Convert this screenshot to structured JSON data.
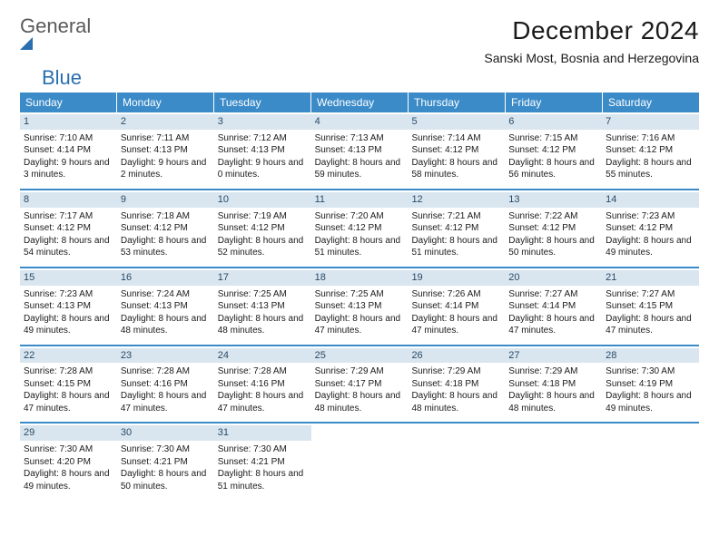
{
  "logo": {
    "general": "General",
    "blue": "Blue"
  },
  "title": "December 2024",
  "location": "Sanski Most, Bosnia and Herzegovina",
  "colors": {
    "header_bg": "#3b8bc8",
    "header_text": "#ffffff",
    "daynum_bg": "#d9e6f0",
    "daynum_text": "#2a4a66",
    "row_divider": "#3b8bc8",
    "logo_general": "#5a5a5a",
    "logo_blue": "#2a6fb0",
    "page_bg": "#ffffff",
    "body_text": "#1a1a1a"
  },
  "weekdays": [
    "Sunday",
    "Monday",
    "Tuesday",
    "Wednesday",
    "Thursday",
    "Friday",
    "Saturday"
  ],
  "weeks": [
    [
      {
        "n": "1",
        "sr": "Sunrise: 7:10 AM",
        "ss": "Sunset: 4:14 PM",
        "dl": "Daylight: 9 hours and 3 minutes."
      },
      {
        "n": "2",
        "sr": "Sunrise: 7:11 AM",
        "ss": "Sunset: 4:13 PM",
        "dl": "Daylight: 9 hours and 2 minutes."
      },
      {
        "n": "3",
        "sr": "Sunrise: 7:12 AM",
        "ss": "Sunset: 4:13 PM",
        "dl": "Daylight: 9 hours and 0 minutes."
      },
      {
        "n": "4",
        "sr": "Sunrise: 7:13 AM",
        "ss": "Sunset: 4:13 PM",
        "dl": "Daylight: 8 hours and 59 minutes."
      },
      {
        "n": "5",
        "sr": "Sunrise: 7:14 AM",
        "ss": "Sunset: 4:12 PM",
        "dl": "Daylight: 8 hours and 58 minutes."
      },
      {
        "n": "6",
        "sr": "Sunrise: 7:15 AM",
        "ss": "Sunset: 4:12 PM",
        "dl": "Daylight: 8 hours and 56 minutes."
      },
      {
        "n": "7",
        "sr": "Sunrise: 7:16 AM",
        "ss": "Sunset: 4:12 PM",
        "dl": "Daylight: 8 hours and 55 minutes."
      }
    ],
    [
      {
        "n": "8",
        "sr": "Sunrise: 7:17 AM",
        "ss": "Sunset: 4:12 PM",
        "dl": "Daylight: 8 hours and 54 minutes."
      },
      {
        "n": "9",
        "sr": "Sunrise: 7:18 AM",
        "ss": "Sunset: 4:12 PM",
        "dl": "Daylight: 8 hours and 53 minutes."
      },
      {
        "n": "10",
        "sr": "Sunrise: 7:19 AM",
        "ss": "Sunset: 4:12 PM",
        "dl": "Daylight: 8 hours and 52 minutes."
      },
      {
        "n": "11",
        "sr": "Sunrise: 7:20 AM",
        "ss": "Sunset: 4:12 PM",
        "dl": "Daylight: 8 hours and 51 minutes."
      },
      {
        "n": "12",
        "sr": "Sunrise: 7:21 AM",
        "ss": "Sunset: 4:12 PM",
        "dl": "Daylight: 8 hours and 51 minutes."
      },
      {
        "n": "13",
        "sr": "Sunrise: 7:22 AM",
        "ss": "Sunset: 4:12 PM",
        "dl": "Daylight: 8 hours and 50 minutes."
      },
      {
        "n": "14",
        "sr": "Sunrise: 7:23 AM",
        "ss": "Sunset: 4:12 PM",
        "dl": "Daylight: 8 hours and 49 minutes."
      }
    ],
    [
      {
        "n": "15",
        "sr": "Sunrise: 7:23 AM",
        "ss": "Sunset: 4:13 PM",
        "dl": "Daylight: 8 hours and 49 minutes."
      },
      {
        "n": "16",
        "sr": "Sunrise: 7:24 AM",
        "ss": "Sunset: 4:13 PM",
        "dl": "Daylight: 8 hours and 48 minutes."
      },
      {
        "n": "17",
        "sr": "Sunrise: 7:25 AM",
        "ss": "Sunset: 4:13 PM",
        "dl": "Daylight: 8 hours and 48 minutes."
      },
      {
        "n": "18",
        "sr": "Sunrise: 7:25 AM",
        "ss": "Sunset: 4:13 PM",
        "dl": "Daylight: 8 hours and 47 minutes."
      },
      {
        "n": "19",
        "sr": "Sunrise: 7:26 AM",
        "ss": "Sunset: 4:14 PM",
        "dl": "Daylight: 8 hours and 47 minutes."
      },
      {
        "n": "20",
        "sr": "Sunrise: 7:27 AM",
        "ss": "Sunset: 4:14 PM",
        "dl": "Daylight: 8 hours and 47 minutes."
      },
      {
        "n": "21",
        "sr": "Sunrise: 7:27 AM",
        "ss": "Sunset: 4:15 PM",
        "dl": "Daylight: 8 hours and 47 minutes."
      }
    ],
    [
      {
        "n": "22",
        "sr": "Sunrise: 7:28 AM",
        "ss": "Sunset: 4:15 PM",
        "dl": "Daylight: 8 hours and 47 minutes."
      },
      {
        "n": "23",
        "sr": "Sunrise: 7:28 AM",
        "ss": "Sunset: 4:16 PM",
        "dl": "Daylight: 8 hours and 47 minutes."
      },
      {
        "n": "24",
        "sr": "Sunrise: 7:28 AM",
        "ss": "Sunset: 4:16 PM",
        "dl": "Daylight: 8 hours and 47 minutes."
      },
      {
        "n": "25",
        "sr": "Sunrise: 7:29 AM",
        "ss": "Sunset: 4:17 PM",
        "dl": "Daylight: 8 hours and 48 minutes."
      },
      {
        "n": "26",
        "sr": "Sunrise: 7:29 AM",
        "ss": "Sunset: 4:18 PM",
        "dl": "Daylight: 8 hours and 48 minutes."
      },
      {
        "n": "27",
        "sr": "Sunrise: 7:29 AM",
        "ss": "Sunset: 4:18 PM",
        "dl": "Daylight: 8 hours and 48 minutes."
      },
      {
        "n": "28",
        "sr": "Sunrise: 7:30 AM",
        "ss": "Sunset: 4:19 PM",
        "dl": "Daylight: 8 hours and 49 minutes."
      }
    ],
    [
      {
        "n": "29",
        "sr": "Sunrise: 7:30 AM",
        "ss": "Sunset: 4:20 PM",
        "dl": "Daylight: 8 hours and 49 minutes."
      },
      {
        "n": "30",
        "sr": "Sunrise: 7:30 AM",
        "ss": "Sunset: 4:21 PM",
        "dl": "Daylight: 8 hours and 50 minutes."
      },
      {
        "n": "31",
        "sr": "Sunrise: 7:30 AM",
        "ss": "Sunset: 4:21 PM",
        "dl": "Daylight: 8 hours and 51 minutes."
      },
      null,
      null,
      null,
      null
    ]
  ]
}
